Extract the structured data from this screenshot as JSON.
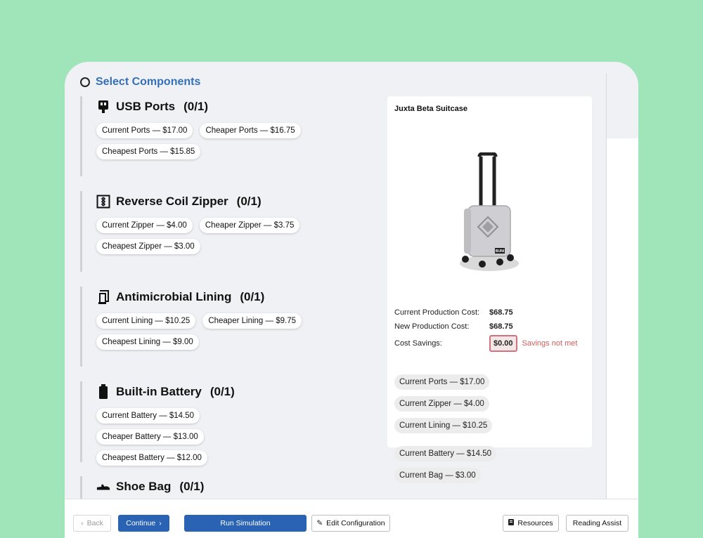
{
  "section": {
    "title": "Select Components"
  },
  "components": [
    {
      "icon": "usb-icon",
      "name": "USB Ports",
      "count": "(0/1)",
      "options": [
        "Current Ports — $17.00",
        "Cheaper Ports — $16.75",
        "Cheapest Ports — $15.85"
      ]
    },
    {
      "icon": "zipper-icon",
      "name": "Reverse Coil Zipper",
      "count": "(0/1)",
      "options": [
        "Current Zipper — $4.00",
        "Cheaper Zipper — $3.75",
        "Cheapest Zipper — $3.00"
      ]
    },
    {
      "icon": "lining-icon",
      "name": "Antimicrobial Lining",
      "count": "(0/1)",
      "options": [
        "Current Lining — $10.25",
        "Cheaper Lining — $9.75",
        "Cheapest Lining — $9.00"
      ]
    },
    {
      "icon": "battery-icon",
      "name": "Built-in Battery",
      "count": "(0/1)",
      "options": [
        "Current Battery — $14.50",
        "Cheaper Battery — $13.00",
        "Cheapest Battery — $12.00"
      ]
    },
    {
      "icon": "shoe-icon",
      "name": "Shoe Bag",
      "count": "(0/1)",
      "options": []
    }
  ],
  "panel": {
    "title": "Juxta Beta Suitcase",
    "image_brand": "BUNI",
    "current_cost_label": "Current Production Cost:",
    "current_cost": "$68.75",
    "new_cost_label": "New Production Cost:",
    "new_cost": "$68.75",
    "savings_label": "Cost Savings:",
    "savings": "$0.00",
    "savings_note": "Savings not met",
    "selected": [
      "Current Ports — $17.00",
      "Current Zipper — $4.00",
      "Current Lining — $10.25",
      "Current Battery — $14.50",
      "Current Bag — $3.00"
    ]
  },
  "footer": {
    "back": "Back",
    "continue": "Continue",
    "run": "Run Simulation",
    "edit": "Edit Configuration",
    "resources": "Resources",
    "reading": "Reading Assist"
  },
  "colors": {
    "accent": "#2a62b4",
    "title": "#3470b8",
    "background": "#9fe5b9",
    "warning": "#c9605e"
  }
}
